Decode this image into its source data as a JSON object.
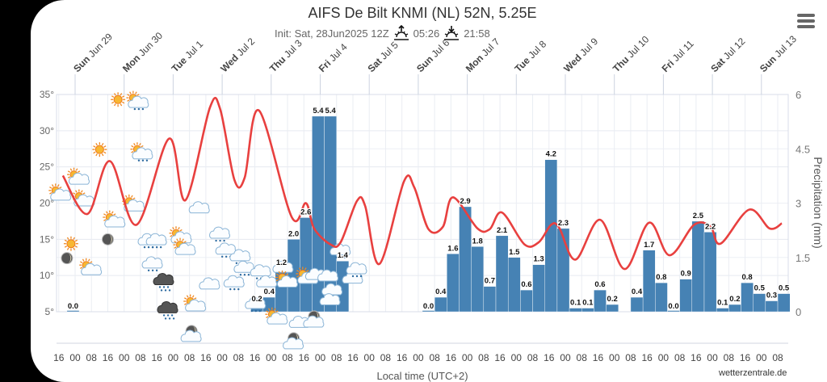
{
  "header": {
    "title": "AIFS De Bilt KNMI (NL) 52N, 5.25E",
    "init": "Init: Sat, 28Jun2025 12Z",
    "sunrise": "05:26",
    "sunset": "21:58"
  },
  "footer": {
    "xlabel": "Local time (UTC+2)",
    "credits": "wetterzentrale.de"
  },
  "colors": {
    "bars": "#4682b4",
    "line": "#e8403f",
    "grid": "#e6e9f0"
  },
  "chart_data": {
    "type": "bar+line",
    "title": "AIFS De Bilt KNMI (NL) 52N, 5.25E",
    "xlabel": "Local time (UTC+2)",
    "y_left": {
      "label": "",
      "ticks": [
        "35°",
        "30°",
        "25°",
        "20°",
        "15°",
        "10°",
        "5°"
      ],
      "range": [
        5,
        35
      ]
    },
    "y_right": {
      "label": "Precipitation (mm)",
      "ticks": [
        "6",
        "4.5",
        "3",
        "1.5",
        "0"
      ],
      "range": [
        0,
        6
      ]
    },
    "x_unit": "hours since Sun Jun 29 00:00 local",
    "days": [
      {
        "dow": "Sun",
        "date": "Jun 29"
      },
      {
        "dow": "Mon",
        "date": "Jun 30"
      },
      {
        "dow": "Tue",
        "date": "Jul 1"
      },
      {
        "dow": "Wed",
        "date": "Jul 2"
      },
      {
        "dow": "Thu",
        "date": "Jul 3"
      },
      {
        "dow": "Fri",
        "date": "Jul 4"
      },
      {
        "dow": "Sat",
        "date": "Jul 5"
      },
      {
        "dow": "Sun",
        "date": "Jul 6"
      },
      {
        "dow": "Mon",
        "date": "Jul 7"
      },
      {
        "dow": "Tue",
        "date": "Jul 8"
      },
      {
        "dow": "Wed",
        "date": "Jul 9"
      },
      {
        "dow": "Thu",
        "date": "Jul 10"
      },
      {
        "dow": "Fri",
        "date": "Jul 11"
      },
      {
        "dow": "Sat",
        "date": "Jul 12"
      },
      {
        "dow": "Sun",
        "date": "Jul 13"
      }
    ],
    "x_tick_start_hour": -8,
    "x_tick_step_hours": 8,
    "x_tick_labels": [
      "16",
      "00",
      "08",
      "16",
      "00",
      "08",
      "16",
      "00",
      "08",
      "16",
      "00",
      "08",
      "16",
      "00",
      "08",
      "16",
      "00",
      "08",
      "16",
      "00",
      "08",
      "16",
      "00",
      "08",
      "16",
      "00",
      "08",
      "16",
      "00",
      "08",
      "16",
      "00",
      "08",
      "16",
      "00",
      "08",
      "16",
      "00",
      "08",
      "16",
      "00",
      "08",
      "16",
      "00",
      "08"
    ],
    "precip_series": {
      "name": "Precipitation 6h (mm)",
      "bar_hours": 6,
      "segments": [
        {
          "start_hour": -4,
          "values": [
            0.0
          ]
        },
        {
          "start_hour": 86,
          "values": [
            0.2,
            0.4,
            1.2,
            2.0,
            2.6,
            5.4,
            5.4,
            1.4
          ]
        },
        {
          "start_hour": 170,
          "values": [
            0.0,
            0.4,
            1.6,
            2.9,
            1.8,
            0.7,
            2.1,
            1.5,
            0.6,
            1.3,
            4.2,
            2.3,
            0.1,
            0.1,
            0.6,
            0.2,
            null,
            0.4,
            1.7,
            0.8,
            0.0,
            0.9,
            2.5,
            2.2,
            0.1,
            0.2,
            0.8,
            0.5,
            0.3,
            0.5
          ]
        }
      ]
    },
    "temperature_series": {
      "name": "Temperature (°C)",
      "points": [
        [
          -6,
          23.8
        ],
        [
          6,
          18.5
        ],
        [
          17,
          25.8
        ],
        [
          30,
          17.0
        ],
        [
          46,
          28.9
        ],
        [
          54,
          20.4
        ],
        [
          66,
          33.2
        ],
        [
          71,
          33.0
        ],
        [
          78,
          23.2
        ],
        [
          83,
          23.5
        ],
        [
          90,
          32.8
        ],
        [
          106,
          18.1
        ],
        [
          113,
          20.0
        ],
        [
          117,
          16.5
        ],
        [
          125,
          14.3
        ],
        [
          130,
          14.6
        ],
        [
          138,
          20.3
        ],
        [
          142,
          19.6
        ],
        [
          149,
          11.6
        ],
        [
          161,
          23.0
        ],
        [
          166,
          22.2
        ],
        [
          173,
          16.4
        ],
        [
          180,
          16.7
        ],
        [
          185,
          20.8
        ],
        [
          197,
          16.5
        ],
        [
          203,
          16.4
        ],
        [
          209,
          18.7
        ],
        [
          220,
          14.3
        ],
        [
          227,
          14.6
        ],
        [
          233,
          17.0
        ],
        [
          237,
          16.6
        ],
        [
          245,
          12.2
        ],
        [
          257,
          17.7
        ],
        [
          269,
          10.9
        ],
        [
          281,
          17.3
        ],
        [
          291,
          12.8
        ],
        [
          303,
          17.0
        ],
        [
          311,
          16.8
        ],
        [
          316,
          14.4
        ],
        [
          330,
          19.1
        ],
        [
          340,
          16.5
        ],
        [
          346,
          17.2
        ]
      ]
    },
    "weather_icons": [
      {
        "type": "sun-cloud",
        "hour": -8,
        "temp": 21.3
      },
      {
        "type": "sun-cloud",
        "hour": 1,
        "temp": 23.5
      },
      {
        "type": "sun-cloud",
        "hour": 3.5,
        "temp": 20.5
      },
      {
        "type": "sun",
        "hour": -2,
        "temp": 14.4
      },
      {
        "type": "moon",
        "hour": -4,
        "temp": 12.4
      },
      {
        "type": "sun-cloud",
        "hour": 7,
        "temp": 11.0
      },
      {
        "type": "sun",
        "hour": 12,
        "temp": 27.4
      },
      {
        "type": "moon",
        "hour": 16,
        "temp": 15.0
      },
      {
        "type": "sun-cloud",
        "hour": 18.5,
        "temp": 17.6
      },
      {
        "type": "sun",
        "hour": 21,
        "temp": 34.3
      },
      {
        "type": "sun-rain",
        "hour": 30,
        "temp": 34.1
      },
      {
        "type": "sun-rain",
        "hour": 32,
        "temp": 27.0
      },
      {
        "type": "sun-cloud",
        "hour": 28,
        "temp": 19.8
      },
      {
        "type": "rain",
        "hour": 36,
        "temp": 14.8
      },
      {
        "type": "rain",
        "hour": 40,
        "temp": 14.8
      },
      {
        "type": "rain",
        "hour": 38,
        "temp": 11.6
      },
      {
        "type": "heavy-rain",
        "hour": 43.5,
        "temp": 9.3
      },
      {
        "type": "heavy-rain",
        "hour": 45.5,
        "temp": 5.4
      },
      {
        "type": "sun-cloud",
        "hour": 51,
        "temp": 15.4
      },
      {
        "type": "sun-cloud",
        "hour": 53,
        "temp": 13.8
      },
      {
        "type": "sun-cloud",
        "hour": 58,
        "temp": 6.0
      },
      {
        "type": "moon-cloud",
        "hour": 57,
        "temp": 2.0
      },
      {
        "type": "cloud",
        "hour": 61,
        "temp": 19.2
      },
      {
        "type": "cloud",
        "hour": 66,
        "temp": 8.7
      },
      {
        "type": "rain",
        "hour": 71,
        "temp": 15.7
      },
      {
        "type": "rain",
        "hour": 74,
        "temp": 13.5
      },
      {
        "type": "rain",
        "hour": 78,
        "temp": 9.0
      },
      {
        "type": "rain",
        "hour": 81,
        "temp": 12.6
      },
      {
        "type": "rain",
        "hour": 83,
        "temp": 11.0
      },
      {
        "type": "rain",
        "hour": 91,
        "temp": 10.5
      },
      {
        "type": "rain",
        "hour": 88.5,
        "temp": 6.0
      },
      {
        "type": "cloud",
        "hour": 94,
        "temp": 9.0
      },
      {
        "type": "sun-cloud",
        "hour": 98,
        "temp": 4.2
      },
      {
        "type": "cloud",
        "hour": 102,
        "temp": 11.0
      },
      {
        "type": "sun-cloud",
        "hour": 103,
        "temp": 9.3
      },
      {
        "type": "moon-cloud",
        "hour": 107,
        "temp": 1.0
      },
      {
        "type": "cloud",
        "hour": 110,
        "temp": 3.4
      },
      {
        "type": "sun-cloud",
        "hour": 113,
        "temp": 9.8
      },
      {
        "type": "moon-cloud",
        "hour": 117,
        "temp": 4.0
      },
      {
        "type": "cloud",
        "hour": 118,
        "temp": 10.0
      },
      {
        "type": "cloud",
        "hour": 124,
        "temp": 9.8
      },
      {
        "type": "rain",
        "hour": 130,
        "temp": 13.4
      },
      {
        "type": "cloud",
        "hour": 136,
        "temp": 9.5
      },
      {
        "type": "rain",
        "hour": 138,
        "temp": 10.8
      },
      {
        "type": "cloud",
        "hour": 126,
        "temp": 7.9
      },
      {
        "type": "cloud",
        "hour": 125,
        "temp": 6.5
      }
    ]
  }
}
